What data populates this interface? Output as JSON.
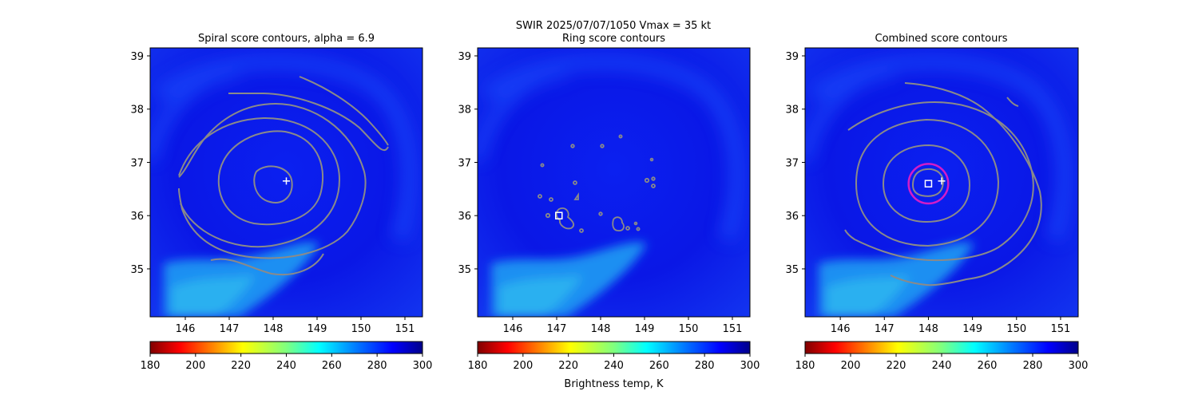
{
  "figure": {
    "suptitle_line1": "SWIR  2025/07/07/1050    Vmax = 35 kt",
    "colorbar_label": "Brightness temp, K"
  },
  "chart_data": [
    {
      "type": "heatmap",
      "panel": "spiral",
      "title": "Spiral score contours, alpha =  6.9",
      "xlim": [
        145.2,
        151.4
      ],
      "ylim": [
        34.1,
        39.15
      ],
      "xticks": [
        146,
        147,
        148,
        149,
        150,
        151
      ],
      "yticks": [
        35,
        36,
        37,
        38,
        39
      ],
      "markers": {
        "plus": [
          148.3,
          36.65
        ]
      },
      "colorbar": {
        "range": [
          180,
          300
        ],
        "ticks": [
          180,
          200,
          220,
          240,
          260,
          280,
          300
        ],
        "colormap": "jet_reversed"
      }
    },
    {
      "type": "heatmap",
      "panel": "ring",
      "title": "Ring score contours",
      "xlim": [
        145.2,
        151.4
      ],
      "ylim": [
        34.1,
        39.15
      ],
      "xticks": [
        146,
        147,
        148,
        149,
        150,
        151
      ],
      "yticks": [
        35,
        36,
        37,
        38,
        39
      ],
      "markers": {
        "square": [
          147.05,
          36.0
        ]
      },
      "colorbar": {
        "range": [
          180,
          300
        ],
        "ticks": [
          180,
          200,
          220,
          240,
          260,
          280,
          300
        ],
        "colormap": "jet_reversed"
      }
    },
    {
      "type": "heatmap",
      "panel": "combined",
      "title": "Combined score contours",
      "xlim": [
        145.2,
        151.4
      ],
      "ylim": [
        34.1,
        39.15
      ],
      "xticks": [
        146,
        147,
        148,
        149,
        150,
        151
      ],
      "yticks": [
        35,
        36,
        37,
        38,
        39
      ],
      "markers": {
        "plus": [
          148.3,
          36.65
        ],
        "square": [
          148.0,
          36.6
        ],
        "ring_center": [
          148.0,
          36.6
        ],
        "ring_radius_deg": 0.45
      },
      "colorbar": {
        "range": [
          180,
          300
        ],
        "ticks": [
          180,
          200,
          220,
          240,
          260,
          280,
          300
        ],
        "colormap": "jet_reversed"
      }
    }
  ],
  "colors": {
    "contour": "#8a8a8a",
    "ring": "#d21dc8",
    "marker": "#ffffff",
    "background_deep": "#0a17e8",
    "background_mid": "#0f32f5",
    "cloud_light": "#1a9bf2"
  }
}
